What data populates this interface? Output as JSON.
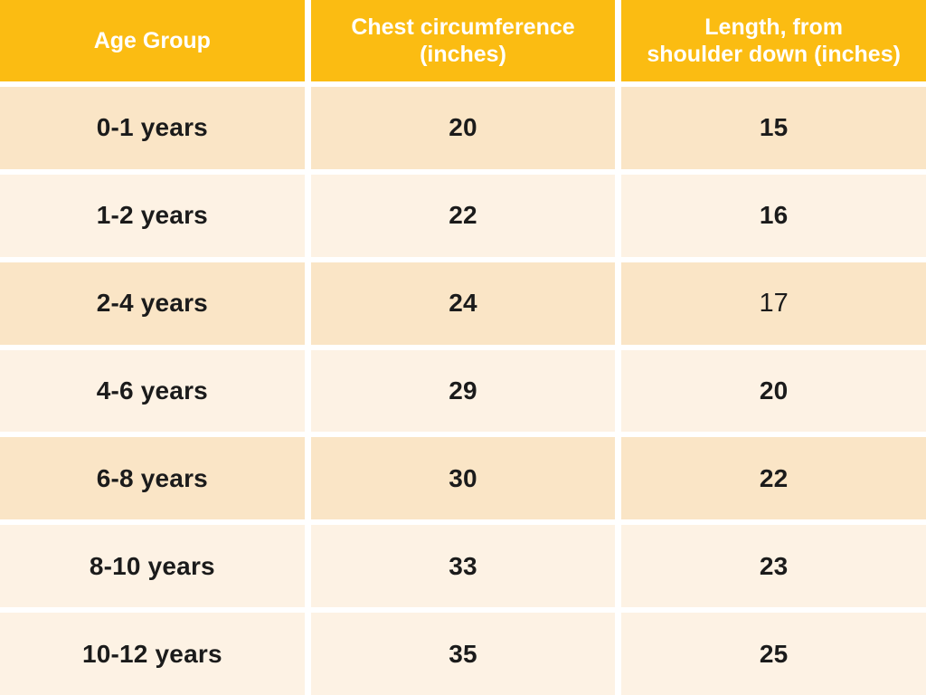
{
  "colors": {
    "header_bg": "#FBBC12",
    "header_text": "#FFFFFF",
    "row_shade_dark": "#FAE5C6",
    "row_shade_light": "#FDF2E4",
    "cell_text": "#1B1B1B",
    "grid_gap": "#FFFFFF"
  },
  "table": {
    "columns": [
      "Age Group",
      "Chest circumference\n(inches)",
      "Length, from\nshoulder down (inches)"
    ],
    "rows": [
      {
        "age": "0-1 years",
        "chest": "20",
        "length": "15"
      },
      {
        "age": "1-2 years",
        "chest": "22",
        "length": "16"
      },
      {
        "age": "2-4 years",
        "chest": "24",
        "length": "17"
      },
      {
        "age": "4-6 years",
        "chest": "29",
        "length": "20"
      },
      {
        "age": "6-8 years",
        "chest": "30",
        "length": "22"
      },
      {
        "age": "8-10 years",
        "chest": "33",
        "length": "23"
      },
      {
        "age": "10-12 years",
        "chest": "35",
        "length": "25"
      }
    ]
  },
  "chart_data": {
    "type": "table",
    "columns": [
      "Age Group",
      "Chest circumference (inches)",
      "Length, from shoulder down (inches)"
    ],
    "rows": [
      [
        "0-1 years",
        20,
        15
      ],
      [
        "1-2 years",
        22,
        16
      ],
      [
        "2-4 years",
        24,
        17
      ],
      [
        "4-6 years",
        29,
        20
      ],
      [
        "6-8 years",
        30,
        22
      ],
      [
        "8-10 years",
        33,
        23
      ],
      [
        "10-12 years",
        35,
        25
      ]
    ],
    "layout": {
      "header_position": "top",
      "zebra_striping": true,
      "stripe_order_by_row": [
        "dark",
        "light",
        "dark",
        "light",
        "dark",
        "light",
        "light"
      ]
    }
  }
}
